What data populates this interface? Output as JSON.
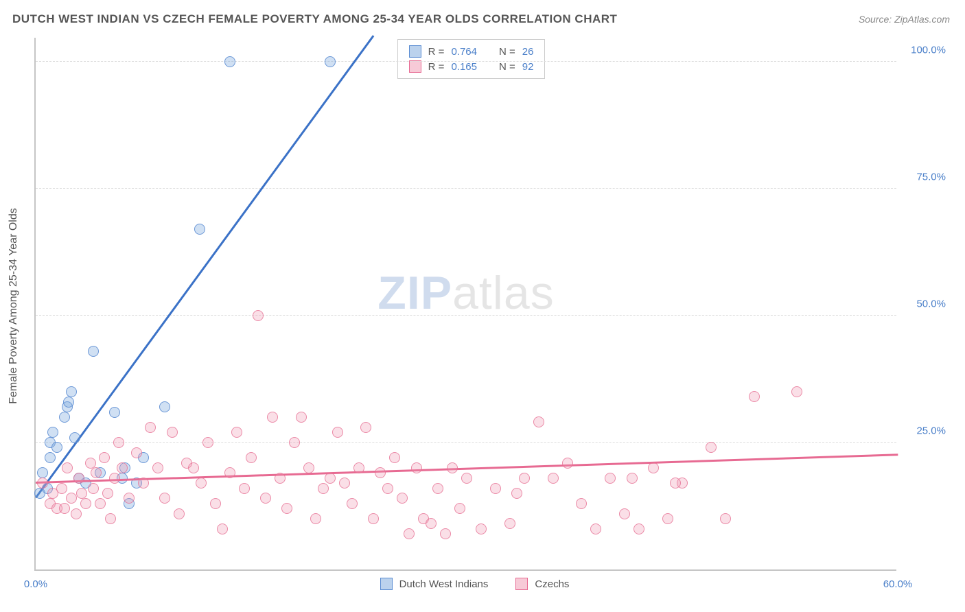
{
  "title": "DUTCH WEST INDIAN VS CZECH FEMALE POVERTY AMONG 25-34 YEAR OLDS CORRELATION CHART",
  "source": "Source: ZipAtlas.com",
  "y_axis_title": "Female Poverty Among 25-34 Year Olds",
  "watermark_bold": "ZIP",
  "watermark_rest": "atlas",
  "xlim": [
    0,
    60
  ],
  "ylim": [
    0,
    105
  ],
  "x_ticks": [
    {
      "v": 0,
      "label": "0.0%"
    },
    {
      "v": 60,
      "label": "60.0%"
    }
  ],
  "y_ticks": [
    {
      "v": 25,
      "label": "25.0%"
    },
    {
      "v": 50,
      "label": "50.0%"
    },
    {
      "v": 75,
      "label": "75.0%"
    },
    {
      "v": 100,
      "label": "100.0%"
    }
  ],
  "series": [
    {
      "name": "Dutch West Indians",
      "color_key": "blue",
      "fill": "rgba(120,165,220,0.35)",
      "stroke": "#5a8cd2",
      "R": "0.764",
      "N": "26",
      "trend": {
        "x1": 0,
        "y1": 14,
        "x2": 23.5,
        "y2": 105
      },
      "points": [
        [
          0.5,
          19
        ],
        [
          0.8,
          16
        ],
        [
          1.0,
          22
        ],
        [
          1.0,
          25
        ],
        [
          1.2,
          27
        ],
        [
          1.5,
          24
        ],
        [
          2.0,
          30
        ],
        [
          2.2,
          32
        ],
        [
          2.3,
          33
        ],
        [
          2.5,
          35
        ],
        [
          2.7,
          26
        ],
        [
          3.0,
          18
        ],
        [
          3.5,
          17
        ],
        [
          4.0,
          43
        ],
        [
          4.5,
          19
        ],
        [
          5.5,
          31
        ],
        [
          6.0,
          18
        ],
        [
          6.2,
          20
        ],
        [
          6.5,
          13
        ],
        [
          7.0,
          17
        ],
        [
          7.5,
          22
        ],
        [
          9.0,
          32
        ],
        [
          11.4,
          67
        ],
        [
          13.5,
          100
        ],
        [
          20.5,
          100
        ],
        [
          0.3,
          15
        ]
      ]
    },
    {
      "name": "Czechs",
      "color_key": "pink",
      "fill": "rgba(240,150,175,0.3)",
      "stroke": "#e76a92",
      "R": "0.165",
      "N": "92",
      "trend": {
        "x1": 0,
        "y1": 17,
        "x2": 60,
        "y2": 22.5
      },
      "points": [
        [
          0.5,
          17
        ],
        [
          1,
          13
        ],
        [
          1.2,
          15
        ],
        [
          1.5,
          12
        ],
        [
          1.8,
          16
        ],
        [
          2,
          12
        ],
        [
          2.2,
          20
        ],
        [
          2.5,
          14
        ],
        [
          2.8,
          11
        ],
        [
          3,
          18
        ],
        [
          3.2,
          15
        ],
        [
          3.5,
          13
        ],
        [
          3.8,
          21
        ],
        [
          4,
          16
        ],
        [
          4.2,
          19
        ],
        [
          4.5,
          13
        ],
        [
          4.8,
          22
        ],
        [
          5,
          15
        ],
        [
          5.2,
          10
        ],
        [
          5.5,
          18
        ],
        [
          5.8,
          25
        ],
        [
          6,
          20
        ],
        [
          6.5,
          14
        ],
        [
          7,
          23
        ],
        [
          7.5,
          17
        ],
        [
          8,
          28
        ],
        [
          8.5,
          20
        ],
        [
          9,
          14
        ],
        [
          9.5,
          27
        ],
        [
          10,
          11
        ],
        [
          10.5,
          21
        ],
        [
          11,
          20
        ],
        [
          11.5,
          17
        ],
        [
          12,
          25
        ],
        [
          12.5,
          13
        ],
        [
          13,
          8
        ],
        [
          13.5,
          19
        ],
        [
          14,
          27
        ],
        [
          14.5,
          16
        ],
        [
          15,
          22
        ],
        [
          15.5,
          50
        ],
        [
          16,
          14
        ],
        [
          16.5,
          30
        ],
        [
          17,
          18
        ],
        [
          17.5,
          12
        ],
        [
          18,
          25
        ],
        [
          18.5,
          30
        ],
        [
          19,
          20
        ],
        [
          19.5,
          10
        ],
        [
          20,
          16
        ],
        [
          20.5,
          18
        ],
        [
          21,
          27
        ],
        [
          21.5,
          17
        ],
        [
          22,
          13
        ],
        [
          22.5,
          20
        ],
        [
          23,
          28
        ],
        [
          23.5,
          10
        ],
        [
          24,
          19
        ],
        [
          24.5,
          16
        ],
        [
          25,
          22
        ],
        [
          25.5,
          14
        ],
        [
          26,
          7
        ],
        [
          26.5,
          20
        ],
        [
          27,
          10
        ],
        [
          27.5,
          9
        ],
        [
          28,
          16
        ],
        [
          28.5,
          7
        ],
        [
          29,
          20
        ],
        [
          29.5,
          12
        ],
        [
          30,
          18
        ],
        [
          31,
          8
        ],
        [
          32,
          16
        ],
        [
          33,
          9
        ],
        [
          34,
          18
        ],
        [
          35,
          29
        ],
        [
          36,
          18
        ],
        [
          37,
          21
        ],
        [
          38,
          13
        ],
        [
          39,
          8
        ],
        [
          40,
          18
        ],
        [
          41,
          11
        ],
        [
          42,
          8
        ],
        [
          43,
          20
        ],
        [
          44,
          10
        ],
        [
          45,
          17
        ],
        [
          47,
          24
        ],
        [
          48,
          10
        ],
        [
          50,
          34
        ],
        [
          53,
          35
        ],
        [
          41.5,
          18
        ],
        [
          44.5,
          17
        ],
        [
          33.5,
          15
        ]
      ]
    }
  ],
  "stats_labels": {
    "R": "R =",
    "N": "N ="
  },
  "colors": {
    "title": "#555555",
    "axis_label": "#4a7fc9",
    "grid": "#dcdcdc",
    "border": "#c5c5c5",
    "background": "#ffffff"
  }
}
